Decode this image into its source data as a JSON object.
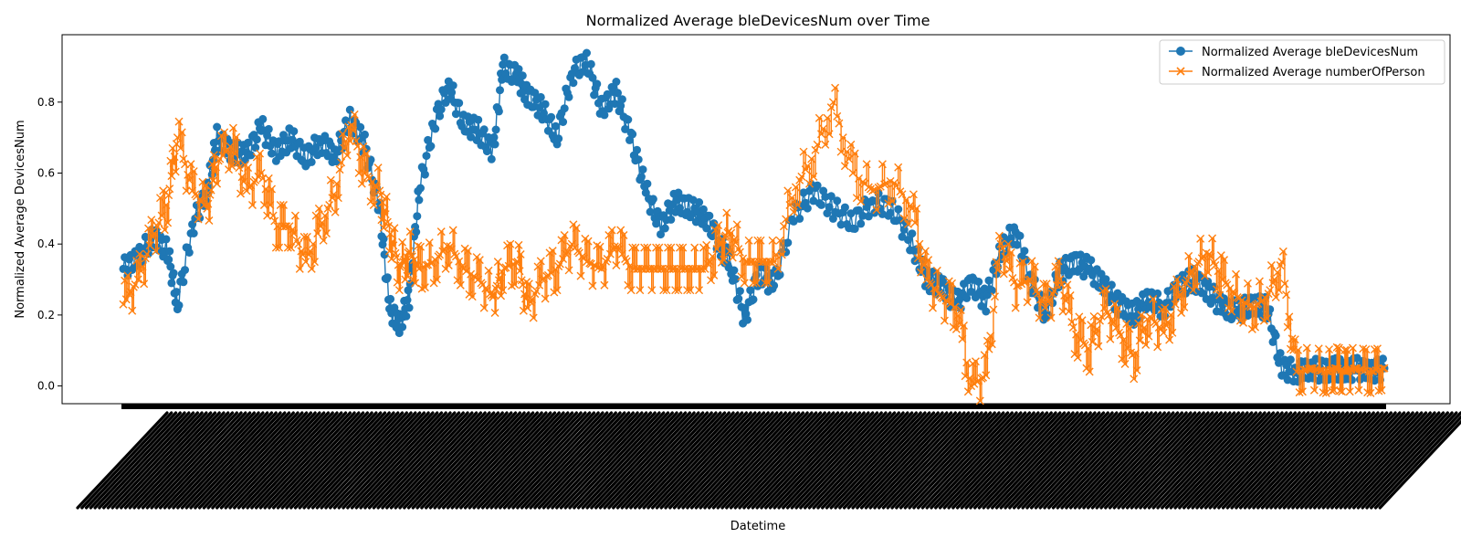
{
  "chart_data": {
    "type": "line",
    "title": "Normalized Average bleDevicesNum over Time",
    "xlabel": "Datetime",
    "ylabel": "Normalized Average DevicesNum",
    "ylim": [
      -0.05,
      0.99
    ],
    "yticks": [
      0.0,
      0.2,
      0.4,
      0.6,
      0.8
    ],
    "ytick_labels": [
      "0.0",
      "0.2",
      "0.4",
      "0.6",
      "0.8"
    ],
    "grid": false,
    "legend_position": "upper right",
    "x_index_range": [
      0,
      1279
    ],
    "x_tick_labels_legible": false,
    "series": [
      {
        "name": "Normalized Average bleDevicesNum",
        "color": "#1f77b4",
        "marker": "circle",
        "x": [
          0,
          15,
          30,
          45,
          55,
          70,
          85,
          95,
          110,
          125,
          140,
          155,
          170,
          185,
          200,
          215,
          230,
          245,
          260,
          270,
          280,
          290,
          300,
          315,
          330,
          345,
          360,
          375,
          385,
          400,
          410,
          425,
          440,
          455,
          470,
          485,
          500,
          515,
          530,
          545,
          560,
          575,
          590,
          605,
          615,
          630,
          645,
          660,
          680,
          700,
          720,
          740,
          760,
          780,
          800,
          815,
          830,
          845,
          860,
          875,
          890,
          905,
          920,
          935,
          950,
          965,
          980,
          995,
          1010,
          1025,
          1040,
          1055,
          1070,
          1085,
          1100,
          1115,
          1130,
          1145,
          1160,
          1175,
          1190,
          1205,
          1220,
          1230,
          1240,
          1250,
          1265,
          1279
        ],
        "y": [
          0.33,
          0.36,
          0.42,
          0.38,
          0.23,
          0.45,
          0.55,
          0.7,
          0.66,
          0.65,
          0.73,
          0.66,
          0.7,
          0.64,
          0.69,
          0.65,
          0.75,
          0.68,
          0.5,
          0.22,
          0.17,
          0.25,
          0.55,
          0.74,
          0.85,
          0.74,
          0.72,
          0.66,
          0.9,
          0.87,
          0.82,
          0.78,
          0.7,
          0.88,
          0.92,
          0.78,
          0.83,
          0.7,
          0.55,
          0.45,
          0.52,
          0.5,
          0.48,
          0.4,
          0.35,
          0.19,
          0.32,
          0.28,
          0.48,
          0.55,
          0.5,
          0.46,
          0.52,
          0.5,
          0.4,
          0.3,
          0.28,
          0.23,
          0.29,
          0.24,
          0.38,
          0.44,
          0.3,
          0.2,
          0.32,
          0.35,
          0.33,
          0.28,
          0.23,
          0.2,
          0.25,
          0.22,
          0.28,
          0.3,
          0.27,
          0.22,
          0.21,
          0.23,
          0.22,
          0.05,
          0.04,
          0.05,
          0.04,
          0.05,
          0.04,
          0.05,
          0.04,
          0.05
        ]
      },
      {
        "name": "Normalized Average numberOfPerson",
        "color": "#ff7f0e",
        "marker": "x",
        "x": [
          0,
          15,
          30,
          45,
          55,
          70,
          85,
          95,
          110,
          125,
          140,
          155,
          170,
          185,
          200,
          215,
          230,
          245,
          260,
          270,
          280,
          290,
          300,
          315,
          330,
          345,
          360,
          375,
          385,
          400,
          410,
          425,
          440,
          455,
          470,
          485,
          500,
          515,
          530,
          545,
          560,
          575,
          590,
          605,
          615,
          630,
          645,
          660,
          680,
          700,
          720,
          740,
          760,
          780,
          800,
          815,
          830,
          845,
          860,
          875,
          890,
          905,
          920,
          935,
          950,
          965,
          980,
          995,
          1010,
          1025,
          1040,
          1055,
          1070,
          1085,
          1100,
          1115,
          1130,
          1145,
          1160,
          1175,
          1190,
          1205,
          1220,
          1230,
          1240,
          1250,
          1265,
          1279
        ],
        "y": [
          0.23,
          0.3,
          0.42,
          0.52,
          0.7,
          0.55,
          0.5,
          0.63,
          0.68,
          0.55,
          0.6,
          0.45,
          0.45,
          0.35,
          0.45,
          0.55,
          0.75,
          0.6,
          0.55,
          0.44,
          0.33,
          0.38,
          0.33,
          0.35,
          0.4,
          0.33,
          0.3,
          0.25,
          0.33,
          0.35,
          0.22,
          0.3,
          0.33,
          0.4,
          0.35,
          0.33,
          0.4,
          0.33,
          0.33,
          0.33,
          0.33,
          0.33,
          0.33,
          0.4,
          0.44,
          0.35,
          0.35,
          0.35,
          0.55,
          0.65,
          0.8,
          0.6,
          0.55,
          0.58,
          0.5,
          0.3,
          0.25,
          0.22,
          0.0,
          0.03,
          0.4,
          0.28,
          0.3,
          0.22,
          0.3,
          0.15,
          0.1,
          0.22,
          0.15,
          0.08,
          0.2,
          0.15,
          0.25,
          0.33,
          0.38,
          0.3,
          0.25,
          0.22,
          0.25,
          0.35,
          0.04,
          0.05,
          0.04,
          0.05,
          0.04,
          0.05,
          0.04,
          0.05
        ]
      }
    ]
  }
}
